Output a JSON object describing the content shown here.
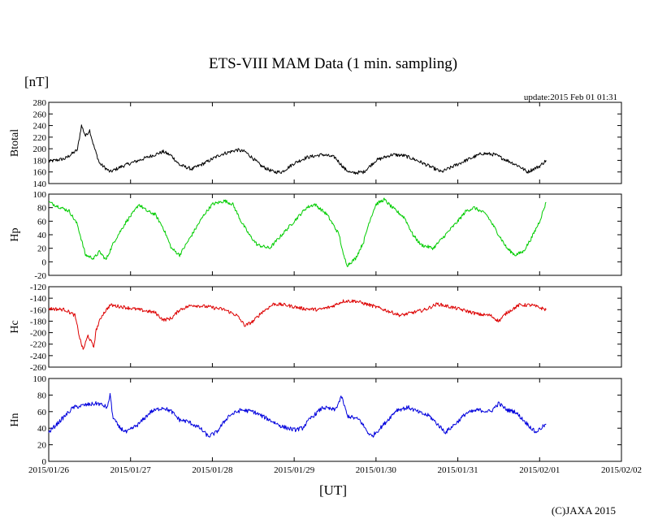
{
  "chart_data": {
    "type": "line",
    "title": "ETS-VIII MAM Data (1 min. sampling)",
    "unit_label": "[nT]",
    "update_label": "update:2015 Feb 01 01:31",
    "xlabel": "[UT]",
    "copyright": "(C)JAXA 2015",
    "x_tick_labels": [
      "2015/01/26",
      "2015/01/27",
      "2015/01/28",
      "2015/01/29",
      "2015/01/30",
      "2015/01/31",
      "2015/02/01",
      "2015/02/02"
    ],
    "xlim_days": [
      0,
      7
    ],
    "panels": [
      {
        "name": "Btotal",
        "ylabel": "Btotal",
        "color": "#000000",
        "ylim": [
          140,
          280
        ],
        "ytick_labels": [
          "140",
          "160",
          "180",
          "200",
          "220",
          "240",
          "260",
          "280"
        ],
        "noise": 3,
        "points": [
          [
            0,
            178
          ],
          [
            0.2,
            183
          ],
          [
            0.3,
            193
          ],
          [
            0.35,
            198
          ],
          [
            0.4,
            240
          ],
          [
            0.45,
            222
          ],
          [
            0.5,
            232
          ],
          [
            0.55,
            205
          ],
          [
            0.62,
            175
          ],
          [
            0.75,
            160
          ],
          [
            0.9,
            170
          ],
          [
            1.1,
            180
          ],
          [
            1.3,
            190
          ],
          [
            1.4,
            195
          ],
          [
            1.5,
            188
          ],
          [
            1.6,
            172
          ],
          [
            1.75,
            165
          ],
          [
            1.9,
            175
          ],
          [
            2.1,
            190
          ],
          [
            2.3,
            198
          ],
          [
            2.4,
            195
          ],
          [
            2.5,
            183
          ],
          [
            2.6,
            170
          ],
          [
            2.75,
            160
          ],
          [
            2.85,
            160
          ],
          [
            3.0,
            175
          ],
          [
            3.15,
            185
          ],
          [
            3.35,
            190
          ],
          [
            3.5,
            185
          ],
          [
            3.62,
            165
          ],
          [
            3.7,
            158
          ],
          [
            3.85,
            160
          ],
          [
            4.0,
            180
          ],
          [
            4.2,
            190
          ],
          [
            4.35,
            188
          ],
          [
            4.5,
            180
          ],
          [
            4.65,
            170
          ],
          [
            4.8,
            160
          ],
          [
            4.95,
            170
          ],
          [
            5.1,
            180
          ],
          [
            5.3,
            192
          ],
          [
            5.45,
            190
          ],
          [
            5.6,
            180
          ],
          [
            5.75,
            170
          ],
          [
            5.85,
            160
          ],
          [
            6.0,
            170
          ],
          [
            6.08,
            180
          ]
        ]
      },
      {
        "name": "Hp",
        "ylabel": "Hp",
        "color": "#00cc00",
        "ylim": [
          -20,
          100
        ],
        "ytick_labels": [
          "-20",
          "0",
          "20",
          "40",
          "60",
          "80",
          "100"
        ],
        "noise": 2.5,
        "points": [
          [
            0,
            88
          ],
          [
            0.15,
            80
          ],
          [
            0.25,
            75
          ],
          [
            0.35,
            55
          ],
          [
            0.45,
            10
          ],
          [
            0.55,
            5
          ],
          [
            0.62,
            15
          ],
          [
            0.7,
            3
          ],
          [
            0.8,
            30
          ],
          [
            0.95,
            60
          ],
          [
            1.05,
            75
          ],
          [
            1.1,
            85
          ],
          [
            1.2,
            75
          ],
          [
            1.3,
            70
          ],
          [
            1.4,
            50
          ],
          [
            1.5,
            20
          ],
          [
            1.6,
            10
          ],
          [
            1.75,
            40
          ],
          [
            1.9,
            70
          ],
          [
            2.0,
            85
          ],
          [
            2.15,
            90
          ],
          [
            2.25,
            85
          ],
          [
            2.35,
            60
          ],
          [
            2.45,
            40
          ],
          [
            2.55,
            25
          ],
          [
            2.7,
            20
          ],
          [
            2.85,
            40
          ],
          [
            3.0,
            60
          ],
          [
            3.15,
            80
          ],
          [
            3.25,
            85
          ],
          [
            3.4,
            70
          ],
          [
            3.55,
            40
          ],
          [
            3.6,
            10
          ],
          [
            3.65,
            -5
          ],
          [
            3.75,
            5
          ],
          [
            3.85,
            30
          ],
          [
            3.92,
            60
          ],
          [
            4.0,
            85
          ],
          [
            4.1,
            92
          ],
          [
            4.2,
            80
          ],
          [
            4.35,
            65
          ],
          [
            4.45,
            40
          ],
          [
            4.55,
            25
          ],
          [
            4.7,
            20
          ],
          [
            4.85,
            40
          ],
          [
            5.0,
            60
          ],
          [
            5.1,
            75
          ],
          [
            5.2,
            80
          ],
          [
            5.35,
            70
          ],
          [
            5.5,
            40
          ],
          [
            5.6,
            20
          ],
          [
            5.7,
            10
          ],
          [
            5.8,
            15
          ],
          [
            5.9,
            35
          ],
          [
            6.0,
            60
          ],
          [
            6.08,
            88
          ]
        ]
      },
      {
        "name": "Hc",
        "ylabel": "Hc",
        "color": "#dd0000",
        "ylim": [
          -260,
          -120
        ],
        "ytick_labels": [
          "-260",
          "-240",
          "-220",
          "-200",
          "-180",
          "-160",
          "-140",
          "-120"
        ],
        "noise": 3,
        "points": [
          [
            0,
            -158
          ],
          [
            0.2,
            -160
          ],
          [
            0.32,
            -170
          ],
          [
            0.38,
            -210
          ],
          [
            0.42,
            -230
          ],
          [
            0.48,
            -205
          ],
          [
            0.55,
            -225
          ],
          [
            0.58,
            -195
          ],
          [
            0.65,
            -170
          ],
          [
            0.75,
            -152
          ],
          [
            0.9,
            -155
          ],
          [
            1.1,
            -160
          ],
          [
            1.3,
            -165
          ],
          [
            1.4,
            -178
          ],
          [
            1.5,
            -175
          ],
          [
            1.6,
            -160
          ],
          [
            1.75,
            -152
          ],
          [
            1.95,
            -155
          ],
          [
            2.15,
            -160
          ],
          [
            2.3,
            -170
          ],
          [
            2.4,
            -188
          ],
          [
            2.5,
            -180
          ],
          [
            2.6,
            -165
          ],
          [
            2.75,
            -150
          ],
          [
            2.9,
            -152
          ],
          [
            3.1,
            -158
          ],
          [
            3.3,
            -160
          ],
          [
            3.45,
            -155
          ],
          [
            3.6,
            -145
          ],
          [
            3.75,
            -145
          ],
          [
            3.95,
            -153
          ],
          [
            4.1,
            -160
          ],
          [
            4.3,
            -170
          ],
          [
            4.45,
            -165
          ],
          [
            4.6,
            -160
          ],
          [
            4.75,
            -150
          ],
          [
            4.9,
            -155
          ],
          [
            5.05,
            -160
          ],
          [
            5.25,
            -168
          ],
          [
            5.4,
            -170
          ],
          [
            5.5,
            -180
          ],
          [
            5.6,
            -165
          ],
          [
            5.75,
            -152
          ],
          [
            5.9,
            -152
          ],
          [
            6.08,
            -160
          ]
        ]
      },
      {
        "name": "Hn",
        "ylabel": "Hn",
        "color": "#0000dd",
        "ylim": [
          0,
          100
        ],
        "ytick_labels": [
          "0",
          "20",
          "40",
          "60",
          "80",
          "100"
        ],
        "noise": 2.5,
        "points": [
          [
            0,
            35
          ],
          [
            0.15,
            50
          ],
          [
            0.3,
            65
          ],
          [
            0.45,
            68
          ],
          [
            0.6,
            70
          ],
          [
            0.72,
            65
          ],
          [
            0.75,
            82
          ],
          [
            0.78,
            55
          ],
          [
            0.85,
            42
          ],
          [
            0.95,
            35
          ],
          [
            1.1,
            45
          ],
          [
            1.25,
            60
          ],
          [
            1.4,
            65
          ],
          [
            1.5,
            60
          ],
          [
            1.6,
            50
          ],
          [
            1.7,
            48
          ],
          [
            1.85,
            40
          ],
          [
            1.95,
            30
          ],
          [
            2.05,
            35
          ],
          [
            2.2,
            55
          ],
          [
            2.35,
            62
          ],
          [
            2.5,
            60
          ],
          [
            2.6,
            55
          ],
          [
            2.7,
            50
          ],
          [
            2.85,
            42
          ],
          [
            3.0,
            38
          ],
          [
            3.1,
            40
          ],
          [
            3.2,
            52
          ],
          [
            3.35,
            65
          ],
          [
            3.5,
            62
          ],
          [
            3.58,
            78
          ],
          [
            3.65,
            55
          ],
          [
            3.8,
            50
          ],
          [
            3.9,
            35
          ],
          [
            3.95,
            30
          ],
          [
            4.1,
            45
          ],
          [
            4.25,
            62
          ],
          [
            4.4,
            65
          ],
          [
            4.55,
            58
          ],
          [
            4.65,
            55
          ],
          [
            4.75,
            45
          ],
          [
            4.85,
            35
          ],
          [
            5.0,
            48
          ],
          [
            5.1,
            58
          ],
          [
            5.25,
            62
          ],
          [
            5.4,
            60
          ],
          [
            5.5,
            70
          ],
          [
            5.6,
            62
          ],
          [
            5.7,
            60
          ],
          [
            5.8,
            50
          ],
          [
            5.95,
            35
          ],
          [
            6.08,
            45
          ]
        ]
      }
    ]
  }
}
